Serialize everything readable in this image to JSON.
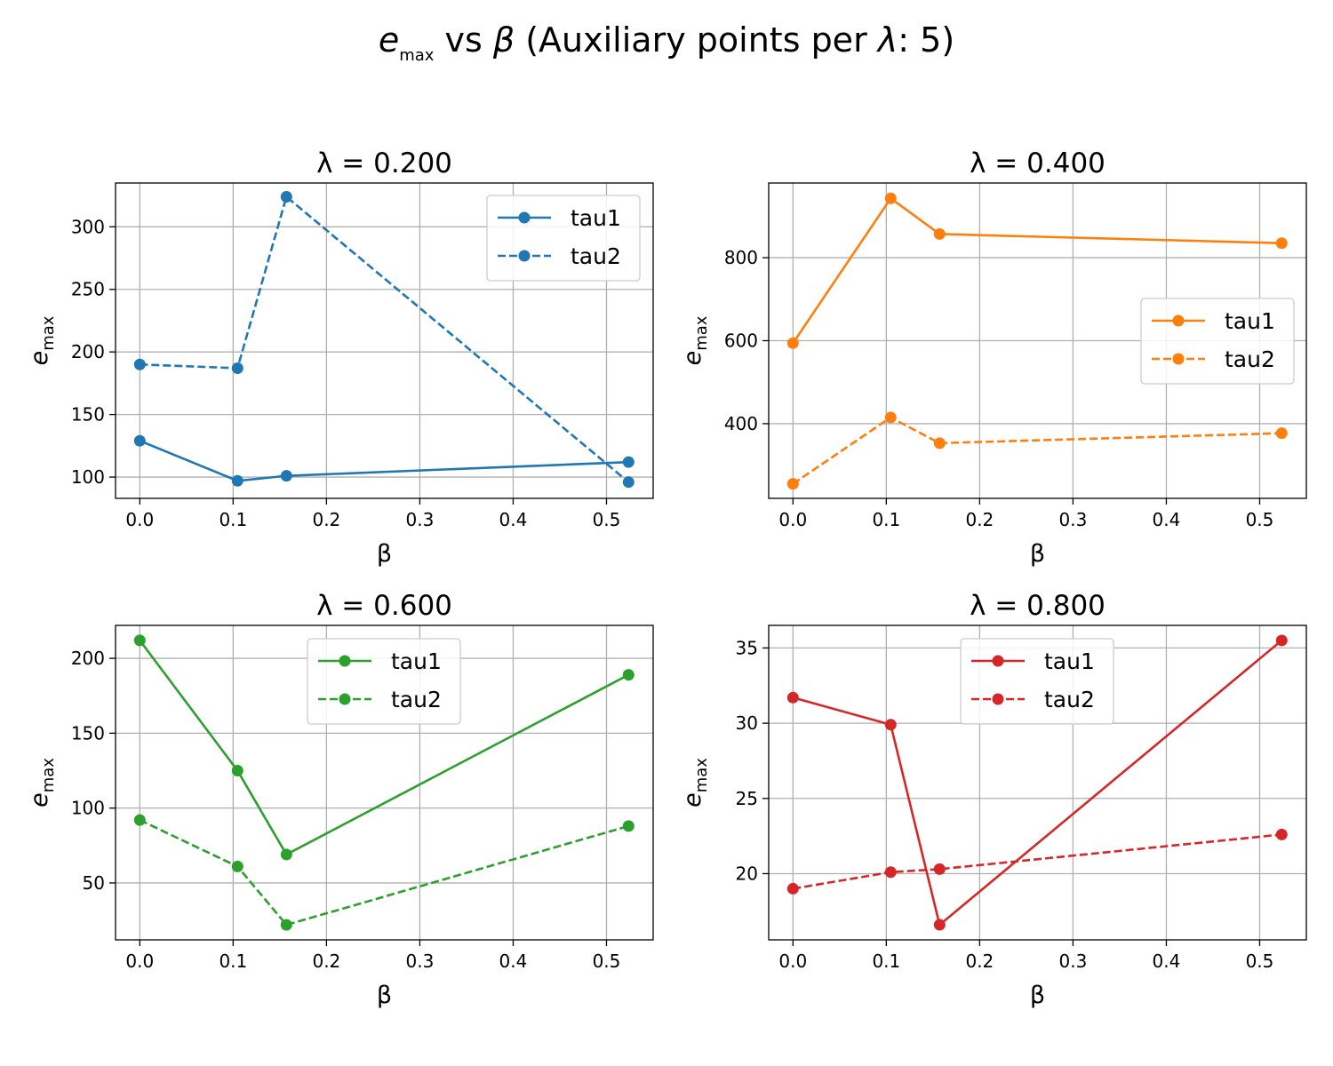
{
  "figure": {
    "title": "e_max vs β (Auxiliary points per λ: 5)",
    "title_parts": {
      "e": "e",
      "sub": "max",
      "mid": " vs ",
      "beta": "β",
      "pre": " (Auxiliary points per ",
      "lam": "λ",
      "post": ": 5)"
    }
  },
  "chart_data": [
    {
      "type": "line",
      "title": "λ = 0.200",
      "xlabel": "β",
      "ylabel": "e_max",
      "xlim": [
        -0.026,
        0.55
      ],
      "ylim": [
        83,
        335
      ],
      "xticks": [
        0.0,
        0.1,
        0.2,
        0.3,
        0.4,
        0.5
      ],
      "xtick_labels": [
        "0.0",
        "0.1",
        "0.2",
        "0.3",
        "0.4",
        "0.5"
      ],
      "yticks": [
        100,
        150,
        200,
        250,
        300
      ],
      "ytick_labels": [
        "100",
        "150",
        "200",
        "250",
        "300"
      ],
      "grid": true,
      "legend": "upper right",
      "color": "#1f77b4",
      "x": [
        0.0,
        0.1047,
        0.1571,
        0.5236
      ],
      "series": [
        {
          "name": "tau1",
          "style": "solid",
          "values": [
            129,
            97,
            101,
            112
          ]
        },
        {
          "name": "tau2",
          "style": "dashed",
          "values": [
            190,
            187,
            324,
            96
          ]
        }
      ]
    },
    {
      "type": "line",
      "title": "λ = 0.400",
      "xlabel": "β",
      "ylabel": "e_max",
      "xlim": [
        -0.026,
        0.55
      ],
      "ylim": [
        220,
        980
      ],
      "xticks": [
        0.0,
        0.1,
        0.2,
        0.3,
        0.4,
        0.5
      ],
      "xtick_labels": [
        "0.0",
        "0.1",
        "0.2",
        "0.3",
        "0.4",
        "0.5"
      ],
      "yticks": [
        400,
        600,
        800
      ],
      "ytick_labels": [
        "400",
        "600",
        "800"
      ],
      "grid": true,
      "legend": "center right",
      "color": "#ff7f0e",
      "x": [
        0.0,
        0.1047,
        0.1571,
        0.5236
      ],
      "series": [
        {
          "name": "tau1",
          "style": "solid",
          "values": [
            594,
            943,
            857,
            835
          ]
        },
        {
          "name": "tau2",
          "style": "dashed",
          "values": [
            255,
            415,
            353,
            377
          ]
        }
      ]
    },
    {
      "type": "line",
      "title": "λ = 0.600",
      "xlabel": "β",
      "ylabel": "e_max",
      "xlim": [
        -0.026,
        0.55
      ],
      "ylim": [
        12,
        222
      ],
      "xticks": [
        0.0,
        0.1,
        0.2,
        0.3,
        0.4,
        0.5
      ],
      "xtick_labels": [
        "0.0",
        "0.1",
        "0.2",
        "0.3",
        "0.4",
        "0.5"
      ],
      "yticks": [
        50,
        100,
        150,
        200
      ],
      "ytick_labels": [
        "50",
        "100",
        "150",
        "200"
      ],
      "grid": true,
      "legend": "upper center",
      "color": "#2ca02c",
      "x": [
        0.0,
        0.1047,
        0.1571,
        0.5236
      ],
      "series": [
        {
          "name": "tau1",
          "style": "solid",
          "values": [
            212,
            125,
            69,
            189
          ]
        },
        {
          "name": "tau2",
          "style": "dashed",
          "values": [
            92,
            61,
            22,
            88
          ]
        }
      ]
    },
    {
      "type": "line",
      "title": "λ = 0.800",
      "xlabel": "β",
      "ylabel": "e_max",
      "xlim": [
        -0.026,
        0.55
      ],
      "ylim": [
        15.6,
        36.5
      ],
      "xticks": [
        0.0,
        0.1,
        0.2,
        0.3,
        0.4,
        0.5
      ],
      "xtick_labels": [
        "0.0",
        "0.1",
        "0.2",
        "0.3",
        "0.4",
        "0.5"
      ],
      "yticks": [
        20,
        25,
        30,
        35
      ],
      "ytick_labels": [
        "20",
        "25",
        "30",
        "35"
      ],
      "grid": true,
      "legend": "upper center",
      "color": "#d62728",
      "x": [
        0.0,
        0.1047,
        0.1571,
        0.5236
      ],
      "series": [
        {
          "name": "tau1",
          "style": "solid",
          "values": [
            31.7,
            29.9,
            16.6,
            35.5
          ]
        },
        {
          "name": "tau2",
          "style": "dashed",
          "values": [
            19.0,
            20.1,
            20.3,
            22.6
          ]
        }
      ]
    }
  ]
}
